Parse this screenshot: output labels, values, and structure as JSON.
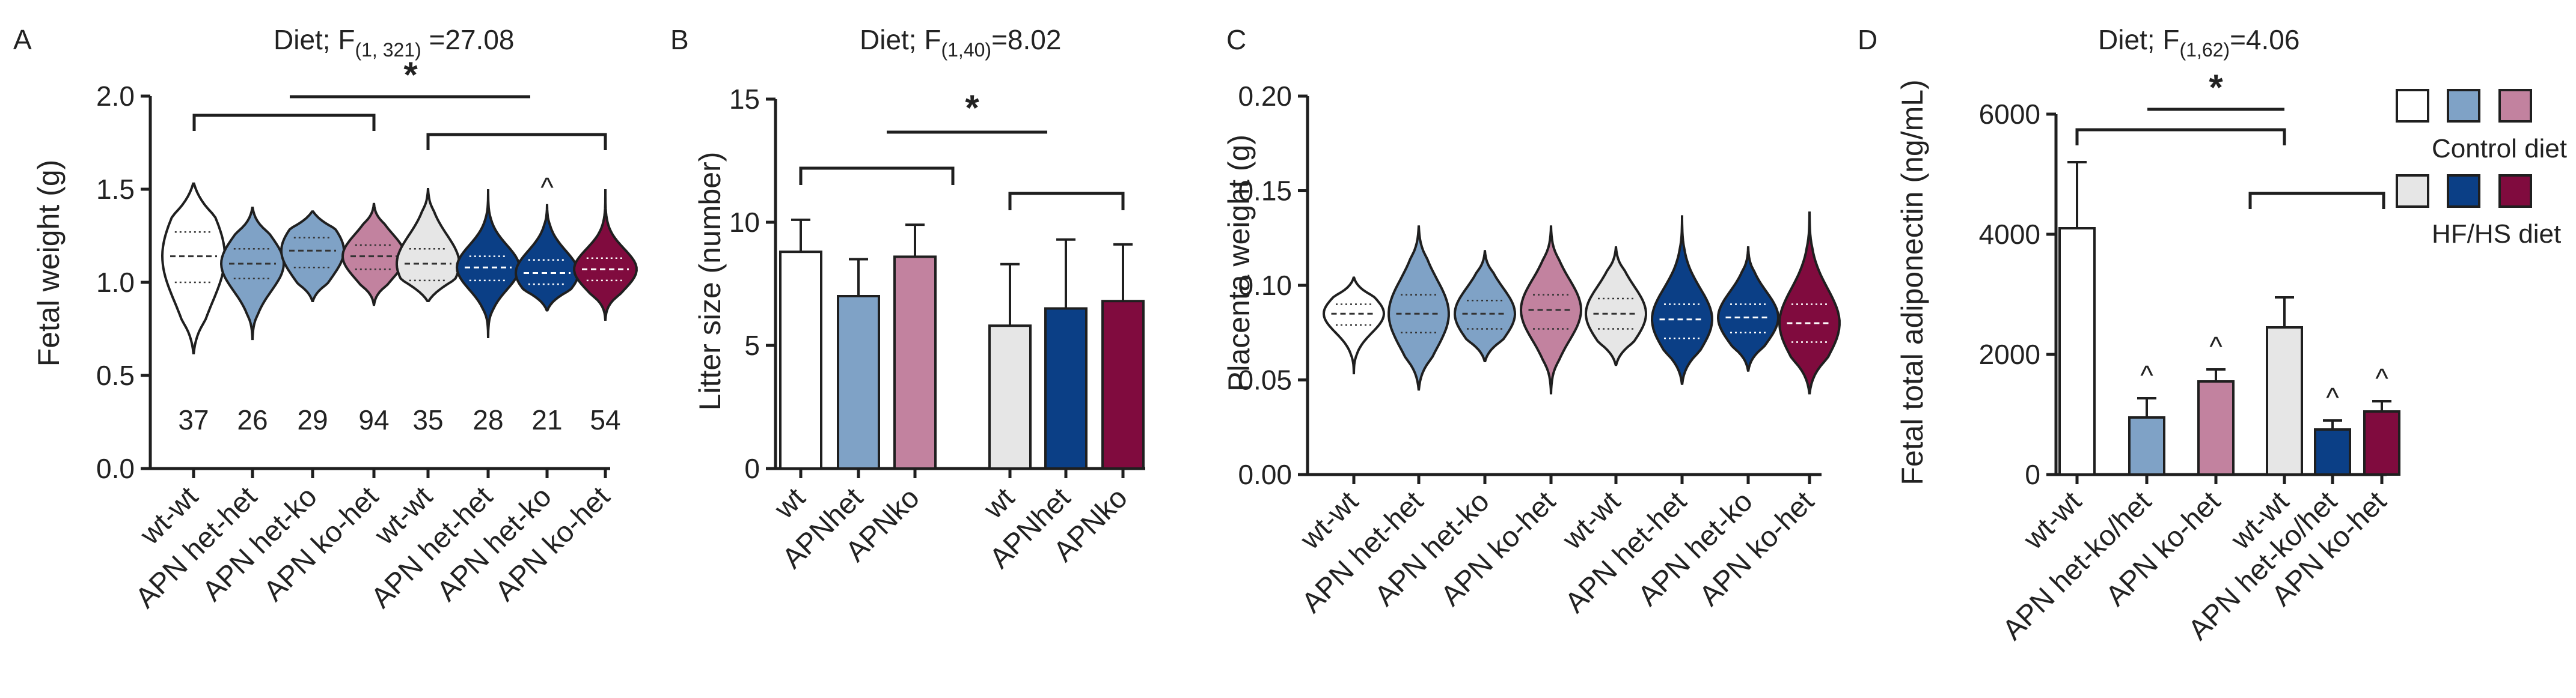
{
  "colors": {
    "white": "#ffffff",
    "light_blue": "#7fa2c6",
    "pink": "#c2829f",
    "light_gray": "#e6e6e6",
    "navy": "#0b3f86",
    "maroon": "#800b3e",
    "stroke": "#1f1f1f"
  },
  "legend": {
    "control_label": "Control diet",
    "hfhs_label": "HF/HS diet"
  },
  "chart_data": [
    {
      "panel": "A",
      "type": "violin",
      "stat_prefix": "Diet; F",
      "stat_sub": "(1, 321)",
      "stat_suffix": " =27.08",
      "ylabel": "Fetal weight (g)",
      "ylim": [
        0,
        2.0
      ],
      "yticks": [
        "0.0",
        "0.5",
        "1.0",
        "1.5",
        "2.0"
      ],
      "categories": [
        "wt-wt",
        "APN het-het",
        "APN het-ko",
        "APN ko-het",
        "wt-wt",
        "APN het-het",
        "APN het-ko",
        "APN ko-het"
      ],
      "fills": [
        "white",
        "light_blue",
        "light_blue",
        "pink",
        "light_gray",
        "navy",
        "navy",
        "maroon"
      ],
      "n_labels": [
        "37",
        "26",
        "29",
        "94",
        "35",
        "28",
        "21",
        "54"
      ],
      "median": [
        1.14,
        1.1,
        1.17,
        1.14,
        1.1,
        1.08,
        1.05,
        1.07
      ],
      "q1": [
        1.0,
        1.02,
        1.08,
        1.07,
        1.01,
        1.01,
        0.99,
        1.01
      ],
      "q3": [
        1.27,
        1.18,
        1.24,
        1.2,
        1.18,
        1.14,
        1.12,
        1.13
      ],
      "min": [
        0.62,
        0.69,
        0.9,
        0.88,
        0.9,
        0.7,
        0.85,
        0.8
      ],
      "max": [
        1.53,
        1.4,
        1.38,
        1.42,
        1.5,
        1.5,
        1.42,
        1.5
      ],
      "caret_symbol": "^",
      "caret_indices": [
        6
      ],
      "significance_symbol": "*"
    },
    {
      "panel": "B",
      "type": "bar",
      "stat_prefix": "Diet; F",
      "stat_sub": "(1,40)",
      "stat_suffix": "=8.02",
      "ylabel": "Litter size (number)",
      "ylim": [
        0,
        15
      ],
      "yticks": [
        "0",
        "5",
        "10",
        "15"
      ],
      "categories": [
        "wt",
        "APNhet",
        "APNko",
        "wt",
        "APNhet",
        "APNko"
      ],
      "fills": [
        "white",
        "light_blue",
        "pink",
        "light_gray",
        "navy",
        "maroon"
      ],
      "values": [
        8.8,
        7.0,
        8.6,
        5.8,
        6.5,
        6.8
      ],
      "errors": [
        1.3,
        1.5,
        1.3,
        2.5,
        2.8,
        2.3
      ],
      "significance_symbol": "*"
    },
    {
      "panel": "C",
      "type": "violin",
      "ylabel": "Placenta weight (g)",
      "ylim": [
        0,
        0.2
      ],
      "yticks": [
        "0.00",
        "0.05",
        "0.10",
        "0.15",
        "0.20"
      ],
      "categories": [
        "wt-wt",
        "APN het-het",
        "APN het-ko",
        "APN ko-het",
        "wt-wt",
        "APN het-het",
        "APN het-ko",
        "APN ko-het"
      ],
      "fills": [
        "white",
        "light_blue",
        "light_blue",
        "pink",
        "light_gray",
        "navy",
        "navy",
        "maroon"
      ],
      "median": [
        0.085,
        0.085,
        0.085,
        0.087,
        0.085,
        0.082,
        0.083,
        0.08
      ],
      "q1": [
        0.079,
        0.075,
        0.077,
        0.077,
        0.077,
        0.072,
        0.075,
        0.07
      ],
      "q3": [
        0.09,
        0.095,
        0.092,
        0.095,
        0.093,
        0.09,
        0.09,
        0.09
      ],
      "min": [
        0.053,
        0.045,
        0.06,
        0.043,
        0.058,
        0.048,
        0.055,
        0.043
      ],
      "max": [
        0.104,
        0.131,
        0.118,
        0.131,
        0.12,
        0.137,
        0.12,
        0.139
      ]
    },
    {
      "panel": "D",
      "type": "bar",
      "stat_prefix": "Diet; F",
      "stat_sub": "(1,62)",
      "stat_suffix": "=4.06",
      "ylabel": "Fetal total adiponectin (ng/mL)",
      "ylim": [
        0,
        6000
      ],
      "yticks": [
        "0",
        "2000",
        "4000",
        "6000"
      ],
      "categories": [
        "wt-wt",
        "APN het-ko/het",
        "APN ko-het",
        "wt-wt",
        "APN het-ko/het",
        "APN ko-het"
      ],
      "fills": [
        "white",
        "light_blue",
        "pink",
        "light_gray",
        "navy",
        "maroon"
      ],
      "values": [
        4100,
        950,
        1550,
        2450,
        750,
        1050
      ],
      "errors": [
        1100,
        320,
        200,
        500,
        150,
        170
      ],
      "caret_symbol": "^",
      "caret_indices": [
        1,
        2,
        4,
        5
      ],
      "significance_symbol": "*"
    }
  ]
}
